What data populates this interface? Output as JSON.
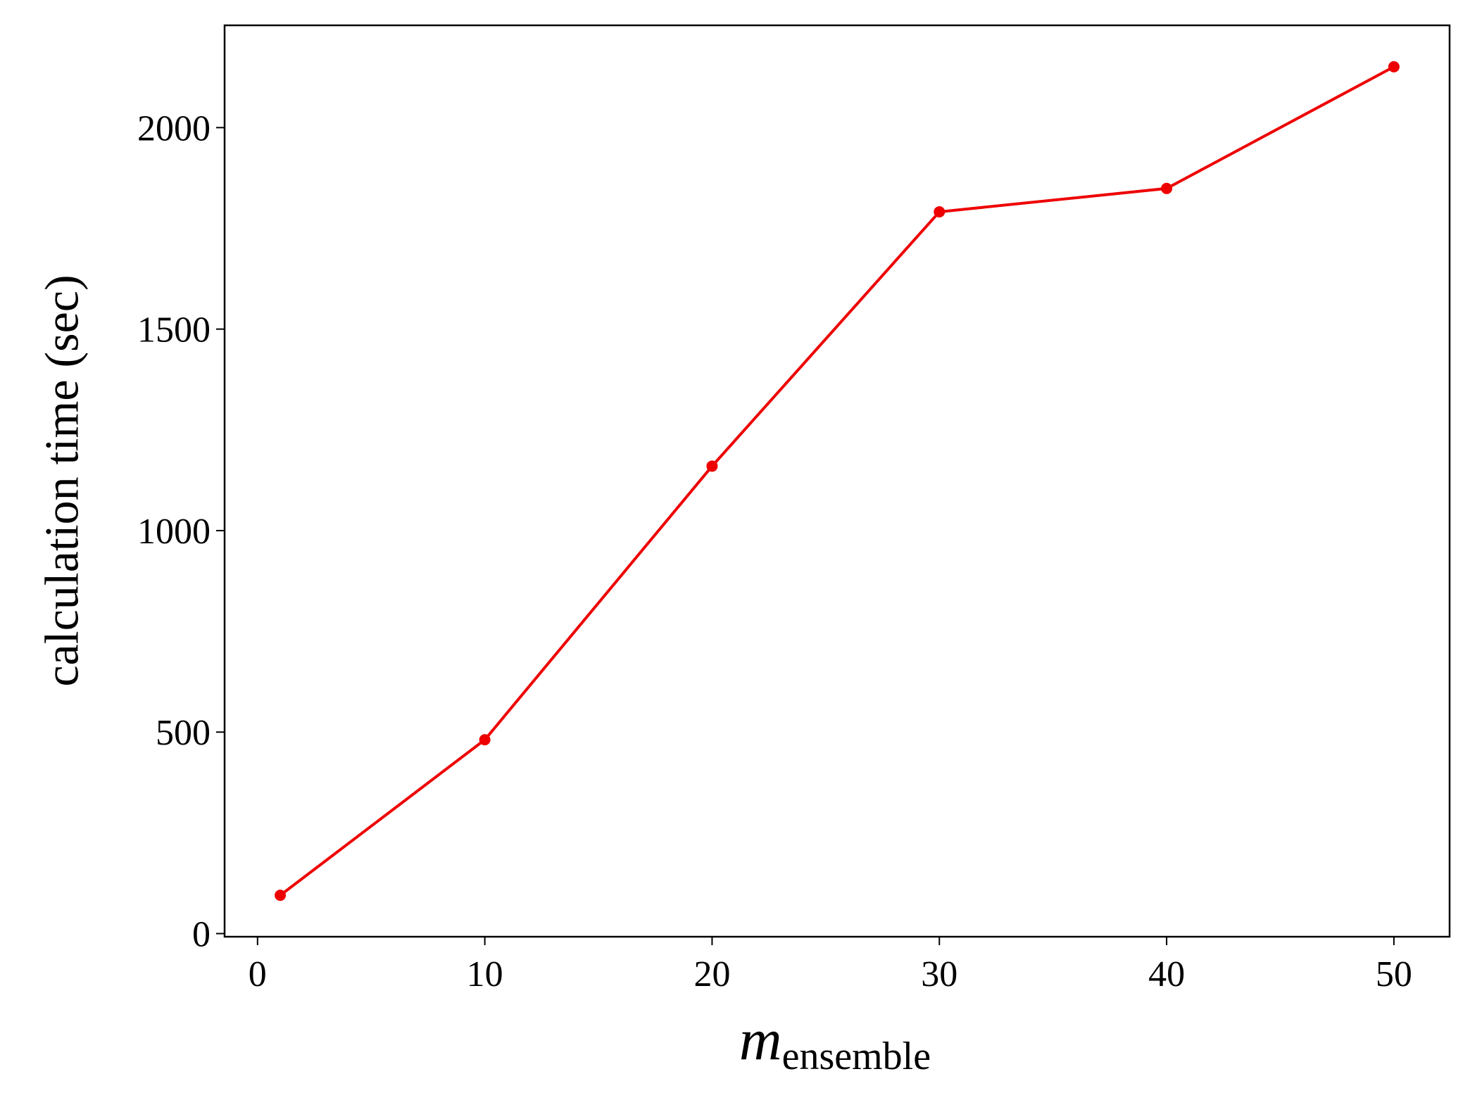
{
  "chart_data": {
    "type": "line",
    "xlabel": "m",
    "xlabel_subscript": "ensemble",
    "ylabel": "calculation time (sec)",
    "x": [
      1,
      10,
      20,
      30,
      40,
      50
    ],
    "series": [
      {
        "color": "#ee0000",
        "values": [
          95,
          481,
          1160,
          1791,
          1849,
          2151
        ]
      }
    ],
    "xlim": [
      -1.45,
      52.45
    ],
    "xticks": [
      0,
      10,
      20,
      30,
      40,
      50
    ],
    "ylim": [
      -7.8,
      2253.8
    ],
    "yticks": [
      0,
      500,
      1000,
      1500,
      2000
    ],
    "grid": false,
    "markers": true
  }
}
